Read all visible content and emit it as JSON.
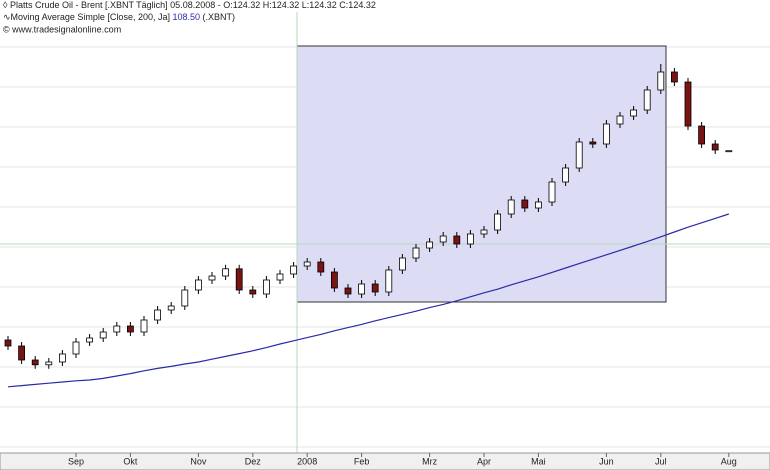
{
  "chart_data": {
    "type": "candlestick",
    "title": "Platts Crude Oil - Brent [.XBNT  Täglich] 05.08.2008 - O:124.32 H:124.32 L:124.32 C:124.32",
    "source": "© www.tradesignalonline.com",
    "categories": [
      null,
      null,
      null,
      null,
      null,
      "Sep",
      null,
      null,
      null,
      "Okt",
      null,
      null,
      null,
      null,
      "Nov",
      null,
      null,
      null,
      "Dez",
      null,
      null,
      null,
      "2008",
      null,
      null,
      null,
      "Feb",
      null,
      null,
      null,
      null,
      "Mrz",
      null,
      null,
      null,
      "Apr",
      null,
      null,
      null,
      "Mai",
      null,
      null,
      null,
      null,
      "Jun",
      null,
      null,
      null,
      "Jul",
      null,
      null,
      null,
      null,
      "Aug"
    ],
    "open": [
      77.0,
      75.5,
      72.0,
      70.8,
      71.5,
      73.5,
      76.5,
      77.5,
      79.0,
      80.5,
      79.0,
      82.0,
      84.5,
      85.5,
      89.5,
      92.0,
      93.0,
      94.8,
      89.5,
      88.5,
      92.0,
      93.5,
      95.5,
      96.5,
      94.0,
      90.0,
      88.5,
      91.0,
      89.0,
      94.5,
      97.5,
      100.0,
      101.5,
      103.0,
      101.0,
      103.5,
      104.5,
      108.5,
      112.0,
      110.0,
      111.5,
      116.5,
      120.0,
      126.5,
      126.0,
      131.0,
      133.0,
      134.5,
      139.5,
      144.0,
      141.5,
      130.5,
      126.0,
      124.32
    ],
    "high": [
      78.0,
      76.5,
      73.0,
      72.5,
      74.5,
      77.5,
      78.5,
      80.0,
      81.5,
      81.5,
      83.0,
      85.5,
      86.5,
      90.5,
      93.0,
      94.0,
      95.8,
      95.8,
      90.5,
      93.0,
      94.5,
      96.5,
      97.5,
      97.5,
      95.0,
      91.0,
      92.0,
      92.0,
      95.5,
      98.5,
      101.0,
      102.5,
      104.0,
      104.0,
      104.5,
      105.5,
      109.5,
      113.0,
      113.0,
      112.5,
      117.5,
      121.0,
      127.5,
      127.5,
      132.0,
      134.0,
      135.5,
      140.5,
      146.0,
      145.0,
      142.5,
      131.5,
      127.0,
      124.32
    ],
    "low": [
      74.5,
      71.0,
      69.8,
      69.8,
      70.5,
      72.5,
      75.5,
      76.5,
      78.0,
      78.0,
      78.0,
      81.0,
      83.5,
      84.5,
      88.5,
      91.0,
      92.0,
      88.5,
      87.5,
      87.5,
      91.0,
      92.5,
      94.5,
      93.0,
      89.0,
      87.5,
      87.5,
      88.0,
      88.0,
      93.5,
      96.5,
      99.0,
      100.5,
      100.0,
      100.0,
      102.5,
      103.5,
      107.5,
      109.0,
      109.0,
      110.5,
      115.5,
      119.0,
      125.0,
      125.0,
      130.0,
      132.0,
      133.5,
      138.5,
      140.5,
      129.5,
      125.0,
      123.5,
      124.32
    ],
    "close": [
      75.5,
      72.0,
      70.8,
      71.5,
      73.5,
      76.5,
      77.5,
      79.0,
      80.5,
      79.0,
      82.0,
      84.5,
      85.5,
      89.5,
      92.0,
      93.0,
      94.8,
      89.5,
      88.5,
      92.0,
      93.5,
      95.5,
      96.5,
      94.0,
      90.0,
      88.5,
      91.0,
      89.0,
      94.5,
      97.5,
      100.0,
      101.5,
      103.0,
      101.0,
      103.5,
      104.5,
      108.5,
      112.0,
      110.0,
      111.5,
      116.5,
      120.0,
      126.5,
      126.0,
      131.0,
      133.0,
      134.5,
      139.5,
      144.0,
      141.5,
      130.5,
      126.0,
      124.5,
      124.32
    ],
    "up_color": "#ffffff",
    "down_color": "#7a1414",
    "ylim": [
      49,
      159
    ],
    "grid": true,
    "series": [
      {
        "name": "Moving Average Simple [Close, 200, Ja]",
        "value_label": "108.50",
        "suffix": "(.XBNT)",
        "color": "#2a2aa8",
        "values": [
          65.3,
          65.6,
          65.9,
          66.2,
          66.5,
          66.8,
          67.0,
          67.4,
          68.0,
          68.6,
          69.3,
          69.9,
          70.4,
          71.0,
          71.5,
          72.2,
          72.9,
          73.6,
          74.3,
          75.1,
          76.0,
          76.8,
          77.6,
          78.4,
          79.3,
          80.1,
          80.9,
          81.8,
          82.6,
          83.4,
          84.2,
          85.1,
          85.9,
          86.8,
          87.8,
          88.8,
          89.7,
          90.8,
          91.8,
          92.8,
          93.9,
          95.0,
          96.1,
          97.2,
          98.3,
          99.4,
          100.5,
          101.6,
          102.8,
          104.0,
          105.2,
          106.3,
          107.4,
          108.5
        ]
      }
    ]
  }
}
